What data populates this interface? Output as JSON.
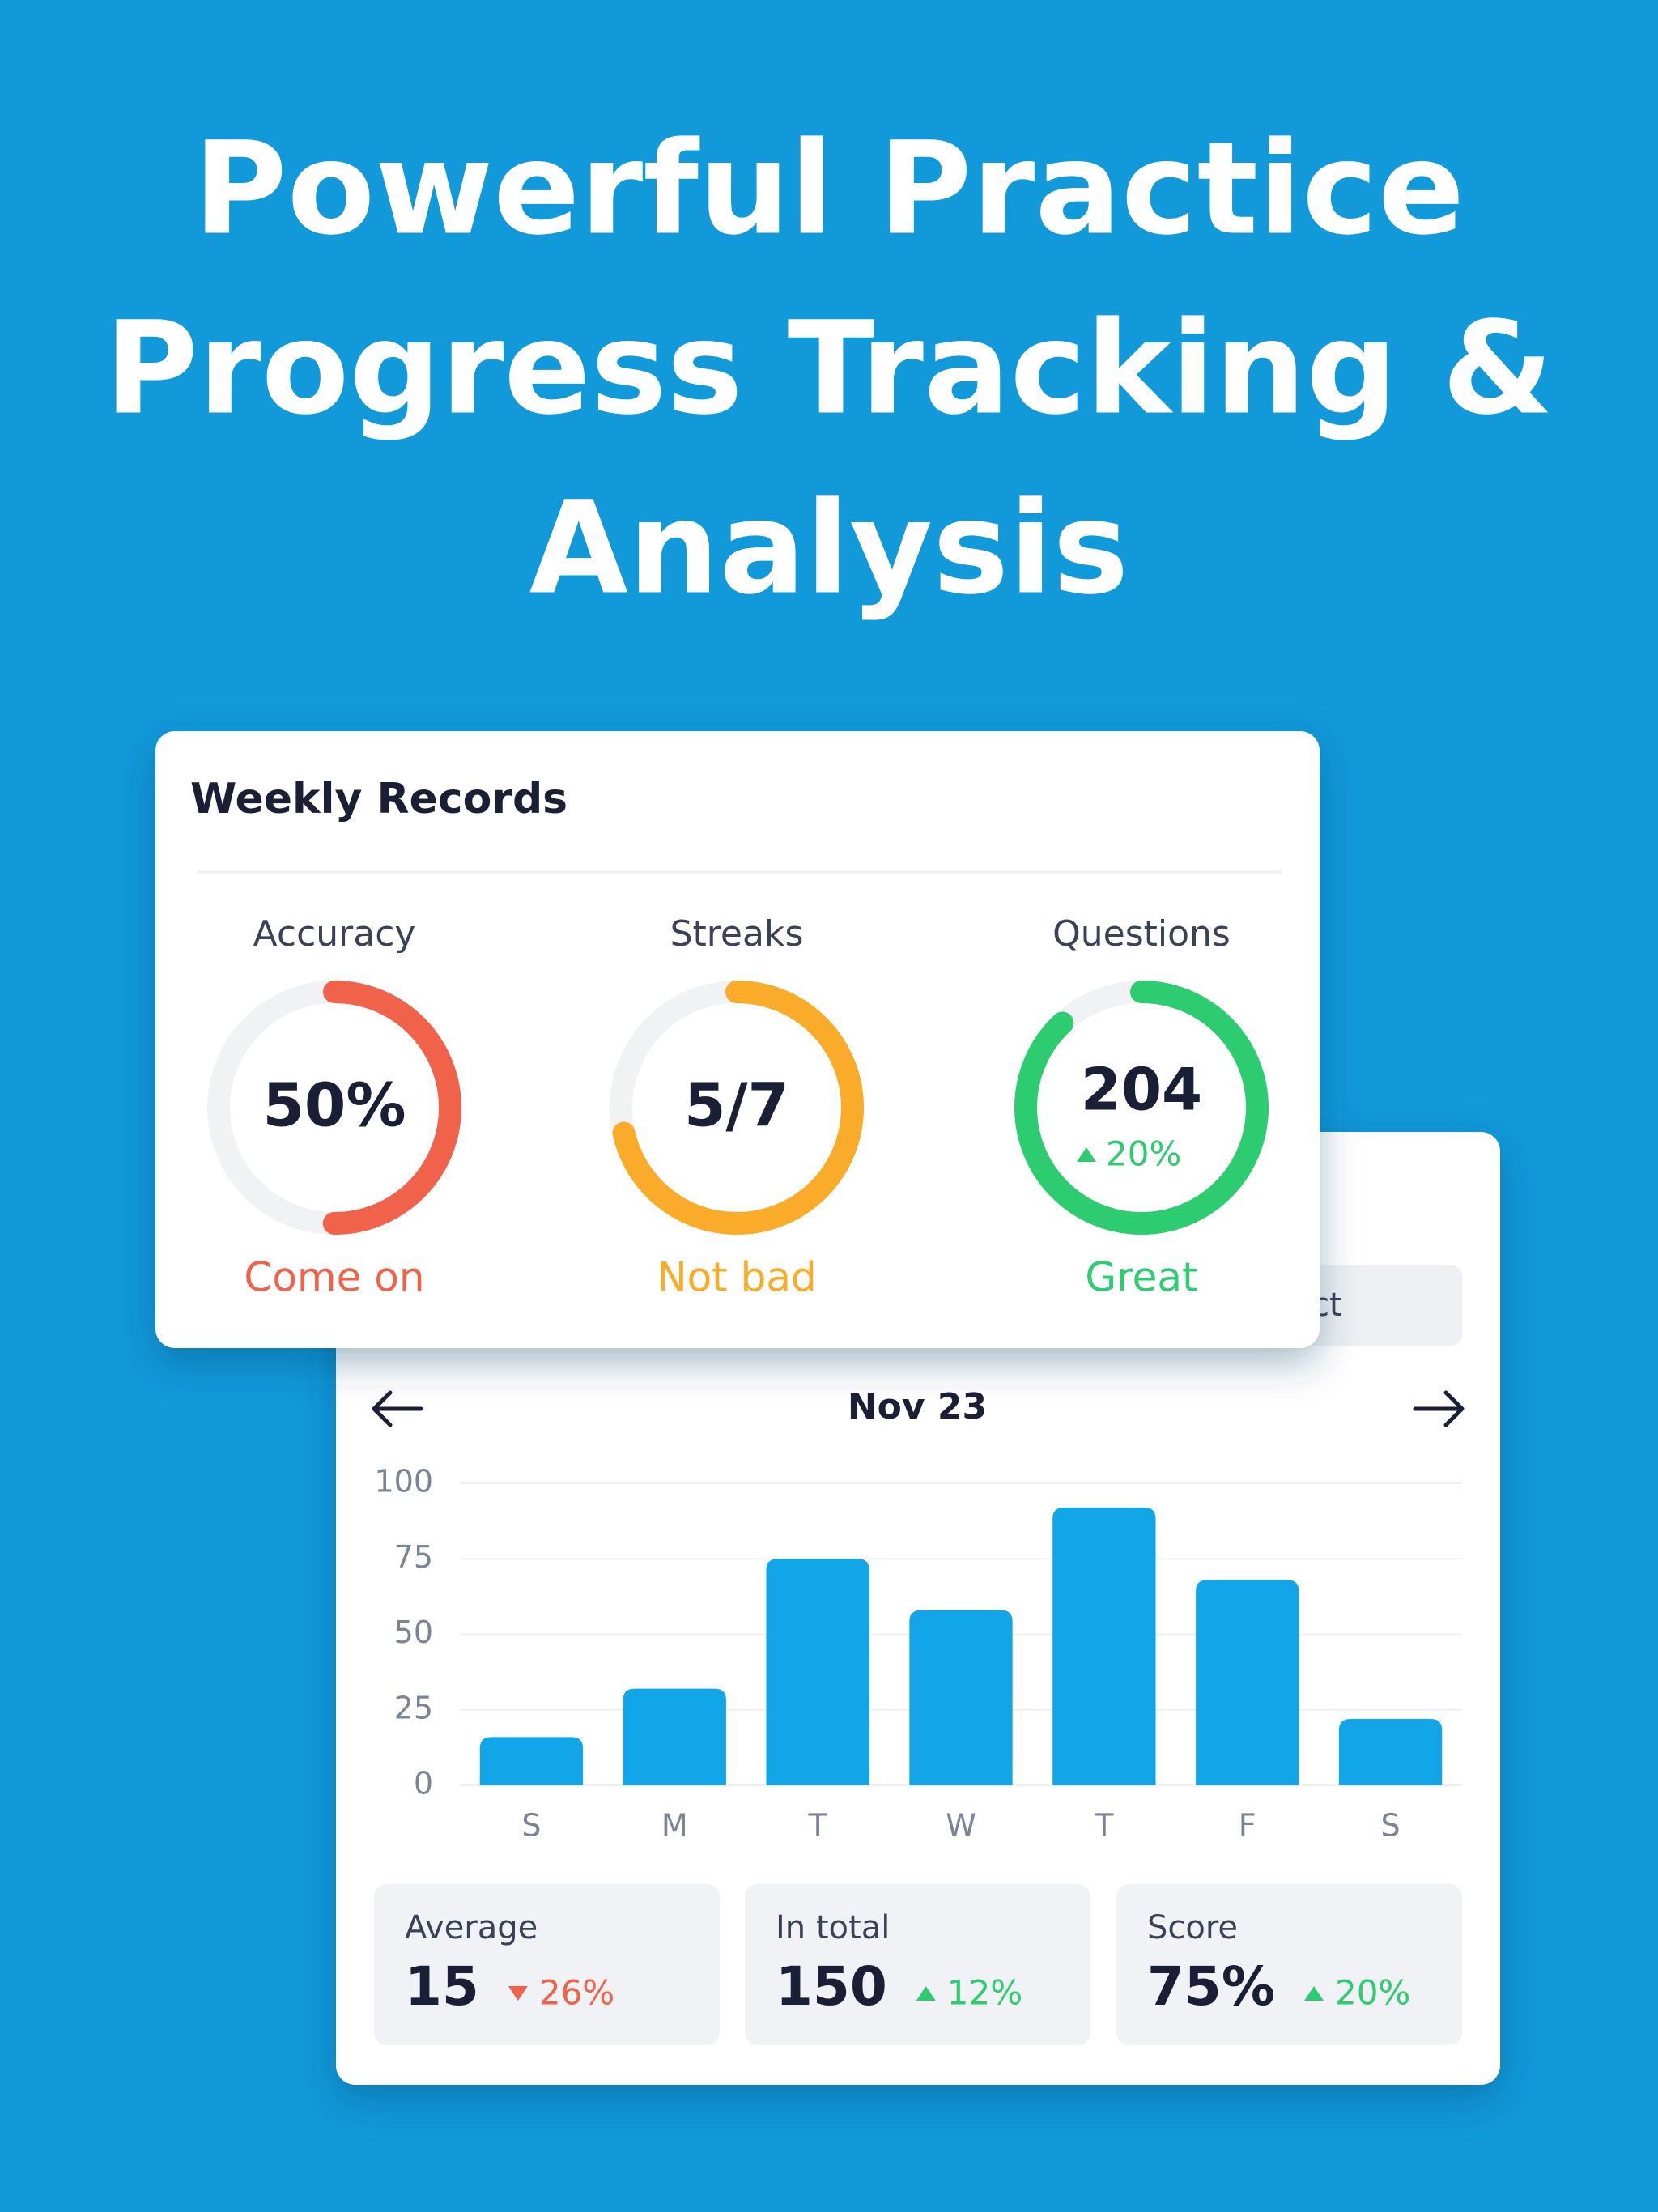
{
  "header": {
    "title_lines": [
      "Powerful Practice",
      "Progress Tracking &",
      "Analysis"
    ]
  },
  "weekly_records": {
    "title": "Weekly Records",
    "gauges": [
      {
        "label": "Accuracy",
        "value": 50,
        "value_label": "50%",
        "max": 100,
        "status": "Come on",
        "color": "#f0634a"
      },
      {
        "label": "Streaks",
        "value": 5,
        "value_label": "5/7",
        "max": 7,
        "status": "Not bad",
        "color": "#fbab2a"
      },
      {
        "label": "Questions",
        "value": 204,
        "progress": 88,
        "change": 20,
        "change_label": "20%",
        "trend": "up",
        "status": "Great",
        "color": "#2ecc71"
      }
    ]
  },
  "back_card": {
    "tab_label": "ct"
  },
  "chart_data": {
    "type": "bar",
    "title": "Nov 23",
    "categories": [
      "S",
      "M",
      "T",
      "W",
      "T",
      "F",
      "S"
    ],
    "values": [
      16,
      32,
      75,
      58,
      92,
      68,
      22
    ],
    "color": "#12a5e8",
    "ylim": [
      0,
      100
    ],
    "yticks": [
      0,
      25,
      50,
      75,
      100
    ],
    "grid": true
  },
  "stats": [
    {
      "label": "Average",
      "value": 15,
      "change": 26,
      "change_label": "26%",
      "trend": "down"
    },
    {
      "label": "In total",
      "value": 150,
      "change": 12,
      "change_label": "12%",
      "trend": "up"
    },
    {
      "label": "Score",
      "value": 75,
      "value_label": "75%",
      "change": 20,
      "change_label": "20%",
      "trend": "up"
    }
  ]
}
